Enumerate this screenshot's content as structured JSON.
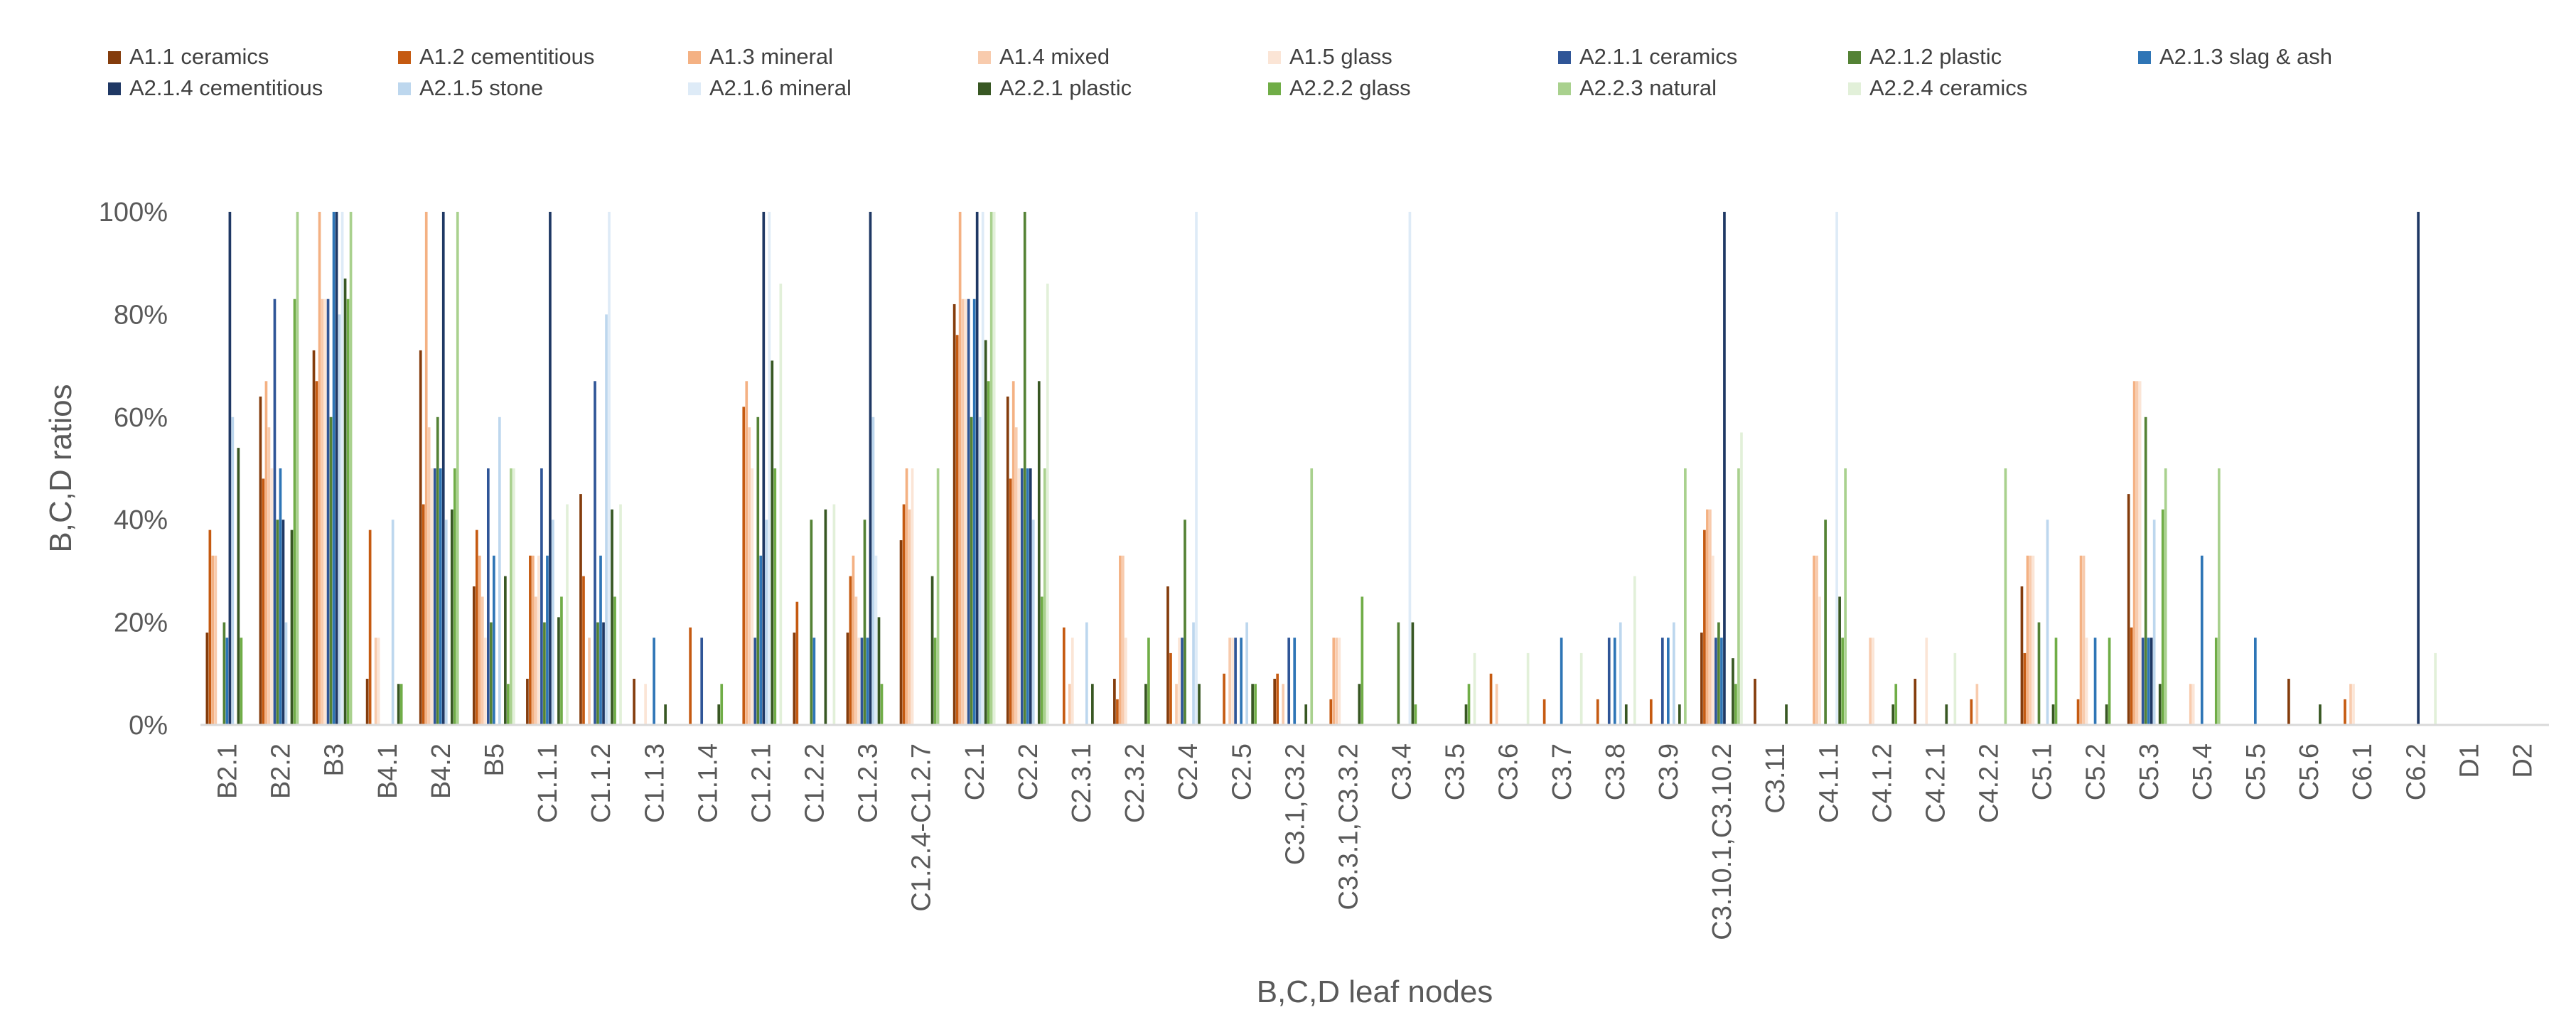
{
  "chart_data": {
    "type": "bar",
    "title": "",
    "xlabel": "B,C,D leaf nodes",
    "ylabel": "B,C,D ratios",
    "ylim": [
      0,
      1
    ],
    "yticks": [
      "0%",
      "20%",
      "40%",
      "60%",
      "80%",
      "100%"
    ],
    "grid": false,
    "legend_position": "top",
    "categories": [
      "B2.1",
      "B2.2",
      "B3",
      "B4.1",
      "B4.2",
      "B5",
      "C1.1.1",
      "C1.1.2",
      "C1.1.3",
      "C1.1.4",
      "C1.2.1",
      "C1.2.2",
      "C1.2.3",
      "C1.2.4-C1.2.7",
      "C2.1",
      "C2.2",
      "C2.3.1",
      "C2.3.2",
      "C2.4",
      "C2.5",
      "C3.1,C3.2",
      "C3.3.1,C3.3.2",
      "C3.4",
      "C3.5",
      "C3.6",
      "C3.7",
      "C3.8",
      "C3.9",
      "C3.10.1,C3.10.2",
      "C3.11",
      "C4.1.1",
      "C4.1.2",
      "C4.2.1",
      "C4.2.2",
      "C5.1",
      "C5.2",
      "C5.3",
      "C5.4",
      "C5.5",
      "C5.6",
      "C6.1",
      "C6.2",
      "D1",
      "D2"
    ],
    "series": [
      {
        "name": "A1.1 ceramics",
        "color": "#843C0C",
        "values": [
          0.18,
          0.64,
          0.73,
          0.09,
          0.73,
          0.27,
          0.09,
          0.45,
          0.09,
          0,
          0,
          0.18,
          0.18,
          0.36,
          0.82,
          0.64,
          0,
          0.09,
          0.27,
          0,
          0.09,
          0,
          0,
          0,
          0,
          0,
          0,
          0,
          0.18,
          0.09,
          0,
          0,
          0.09,
          0,
          0.27,
          0,
          0.45,
          0,
          0,
          0.09,
          0,
          0,
          0,
          0
        ]
      },
      {
        "name": "A1.2 cementitious",
        "color": "#C55A11",
        "values": [
          0.38,
          0.48,
          0.67,
          0.38,
          0.43,
          0.38,
          0.33,
          0.29,
          0,
          0.19,
          0.62,
          0.24,
          0.29,
          0.43,
          0.76,
          0.48,
          0.19,
          0.05,
          0.14,
          0.1,
          0.1,
          0.05,
          0,
          0,
          0.1,
          0.05,
          0.05,
          0.05,
          0.38,
          0,
          0,
          0,
          0,
          0.05,
          0.14,
          0.05,
          0.19,
          0,
          0,
          0,
          0.05,
          0,
          0,
          0
        ]
      },
      {
        "name": "A1.3 mineral",
        "color": "#F4B183",
        "values": [
          0.33,
          0.67,
          1.0,
          0,
          1.0,
          0.33,
          0.33,
          0,
          0,
          0,
          0.67,
          0,
          0.33,
          0.5,
          1.0,
          0.67,
          0,
          0.33,
          0,
          0,
          0,
          0.17,
          0,
          0,
          0,
          0,
          0,
          0,
          0.42,
          0,
          0.33,
          0,
          0,
          0,
          0.33,
          0.33,
          0.67,
          0,
          0,
          0,
          0,
          0,
          0,
          0
        ]
      },
      {
        "name": "A1.4 mixed",
        "color": "#F8CBAD",
        "values": [
          0.33,
          0.58,
          0.83,
          0.17,
          0.58,
          0.25,
          0.25,
          0.17,
          0,
          0,
          0.58,
          0,
          0.25,
          0.42,
          0.83,
          0.58,
          0.08,
          0.33,
          0.08,
          0.17,
          0.08,
          0.17,
          0,
          0,
          0.08,
          0,
          0,
          0,
          0.42,
          0,
          0.33,
          0.17,
          0,
          0.08,
          0.33,
          0.33,
          0.67,
          0.08,
          0,
          0,
          0.08,
          0,
          0,
          0
        ]
      },
      {
        "name": "A1.5 glass",
        "color": "#FBE5D6",
        "values": [
          0,
          0.5,
          0.83,
          0.17,
          0.5,
          0.17,
          0.33,
          0,
          0.08,
          0,
          0.5,
          0,
          0.17,
          0.5,
          0.83,
          0.5,
          0.17,
          0.17,
          0.17,
          0.17,
          0,
          0.17,
          0,
          0,
          0,
          0,
          0,
          0,
          0.33,
          0,
          0.25,
          0.17,
          0.17,
          0,
          0.33,
          0.17,
          0.67,
          0.08,
          0,
          0,
          0.08,
          0,
          0,
          0
        ]
      },
      {
        "name": "A2.1.1 ceramics",
        "color": "#2F5597",
        "values": [
          0,
          0.83,
          0.83,
          0,
          0.5,
          0.5,
          0.5,
          0.67,
          0,
          0.17,
          0.17,
          0,
          0.17,
          0,
          0.83,
          0.5,
          0,
          0,
          0.17,
          0.17,
          0.17,
          0,
          0,
          0,
          0,
          0,
          0.17,
          0.17,
          0.17,
          0,
          0,
          0,
          0,
          0,
          0,
          0,
          0.17,
          0,
          0,
          0,
          0,
          0,
          0,
          0
        ]
      },
      {
        "name": "A2.1.2 plastic",
        "color": "#548235",
        "values": [
          0.2,
          0.4,
          0.6,
          0,
          0.6,
          0.2,
          0.2,
          0.2,
          0,
          0,
          0.6,
          0.4,
          0.4,
          0,
          0.6,
          1.0,
          0,
          0,
          0.4,
          0,
          0,
          0,
          0.2,
          0,
          0,
          0,
          0,
          0,
          0.2,
          0,
          0.4,
          0,
          0,
          0,
          0.2,
          0,
          0.6,
          0,
          0,
          0,
          0,
          0,
          0,
          0
        ]
      },
      {
        "name": "A2.1.3 slag & ash",
        "color": "#2E75B6",
        "values": [
          0.17,
          0.5,
          1.0,
          0,
          0.5,
          0.33,
          0.33,
          0.33,
          0.17,
          0,
          0.33,
          0.17,
          0.17,
          0,
          0.83,
          0.5,
          0,
          0,
          0,
          0.17,
          0.17,
          0,
          0,
          0,
          0,
          0.17,
          0.17,
          0.17,
          0.17,
          0,
          0,
          0,
          0,
          0,
          0,
          0.17,
          0.17,
          0.33,
          0.17,
          0,
          0,
          0,
          0,
          0
        ]
      },
      {
        "name": "A2.1.4 cementitious",
        "color": "#1F3864",
        "values": [
          1.0,
          0.4,
          1.0,
          0,
          1.0,
          0,
          1.0,
          0.2,
          0,
          0,
          1.0,
          0,
          1.0,
          0,
          1.0,
          0.5,
          0,
          0,
          0,
          0,
          0,
          0,
          0,
          0,
          0,
          0,
          0,
          0,
          1.0,
          0,
          0,
          0,
          0,
          0,
          0,
          0,
          0.17,
          0,
          0,
          0,
          0,
          1.0,
          0,
          0
        ]
      },
      {
        "name": "A2.1.5 stone",
        "color": "#BDD7EE",
        "values": [
          0.6,
          0.2,
          0.8,
          0.4,
          0.4,
          0.6,
          0.4,
          0.8,
          0,
          0,
          0.4,
          0,
          0.6,
          0,
          0.6,
          0.4,
          0.2,
          0,
          0.2,
          0.2,
          0,
          0,
          0,
          0,
          0,
          0,
          0.2,
          0.2,
          0,
          0,
          0,
          0,
          0,
          0,
          0.4,
          0,
          0.4,
          0,
          0,
          0,
          0,
          0,
          0,
          0
        ]
      },
      {
        "name": "A2.1.6 mineral",
        "color": "#DEEBF7",
        "values": [
          0,
          0,
          1.0,
          0,
          0,
          0,
          0,
          1.0,
          0,
          0,
          1.0,
          0,
          0.33,
          0,
          1.0,
          0,
          0,
          0,
          1.0,
          0,
          0,
          0,
          1.0,
          0,
          0,
          0,
          0,
          0,
          0,
          0,
          1.0,
          0,
          0,
          0,
          0,
          0,
          0,
          0,
          0,
          0,
          0,
          0,
          0,
          0
        ]
      },
      {
        "name": "A2.2.1 plastic",
        "color": "#385723",
        "values": [
          0.54,
          0.38,
          0.87,
          0.08,
          0.42,
          0.29,
          0.21,
          0.42,
          0.04,
          0.04,
          0.71,
          0.42,
          0.21,
          0.29,
          0.75,
          0.67,
          0.08,
          0.08,
          0.08,
          0.08,
          0.04,
          0.08,
          0.2,
          0.04,
          0,
          0,
          0.04,
          0.04,
          0.13,
          0.04,
          0.25,
          0.04,
          0.04,
          0,
          0.04,
          0.04,
          0.08,
          0,
          0,
          0.04,
          0,
          0,
          0,
          0
        ]
      },
      {
        "name": "A2.2.2 glass",
        "color": "#70AD47",
        "values": [
          0.17,
          0.83,
          0.83,
          0.08,
          0.5,
          0.08,
          0.25,
          0.25,
          0,
          0.08,
          0.5,
          0,
          0.08,
          0.17,
          0.67,
          0.25,
          0,
          0.17,
          0,
          0.08,
          0,
          0.25,
          0.04,
          0.08,
          0,
          0,
          0,
          0,
          0.08,
          0,
          0.17,
          0.08,
          0,
          0,
          0.17,
          0.17,
          0.42,
          0.17,
          0,
          0,
          0,
          0,
          0,
          0
        ]
      },
      {
        "name": "A2.2.3 natural",
        "color": "#A9D18E",
        "values": [
          0,
          1.0,
          1.0,
          0,
          1.0,
          0.5,
          0,
          0,
          0,
          0,
          0,
          0,
          0,
          0.5,
          1.0,
          0.5,
          0,
          0,
          0,
          0,
          0.5,
          0,
          0,
          0,
          0,
          0,
          0,
          0.5,
          0.5,
          0,
          0.5,
          0,
          0,
          0.5,
          0,
          0,
          0.5,
          0.5,
          0,
          0,
          0,
          0,
          0,
          0
        ]
      },
      {
        "name": "A2.2.4 ceramics",
        "color": "#E2F0D9",
        "values": [
          0,
          0,
          0,
          0,
          0,
          0.5,
          0.43,
          0.43,
          0,
          0,
          0.86,
          0.43,
          0,
          0,
          1.0,
          0.86,
          0,
          0,
          0,
          0,
          0,
          0,
          0,
          0.14,
          0.14,
          0.14,
          0.29,
          0,
          0.57,
          0,
          0,
          0,
          0.14,
          0,
          0,
          0,
          0,
          0,
          0,
          0,
          0,
          0.14,
          0,
          0
        ]
      }
    ]
  }
}
